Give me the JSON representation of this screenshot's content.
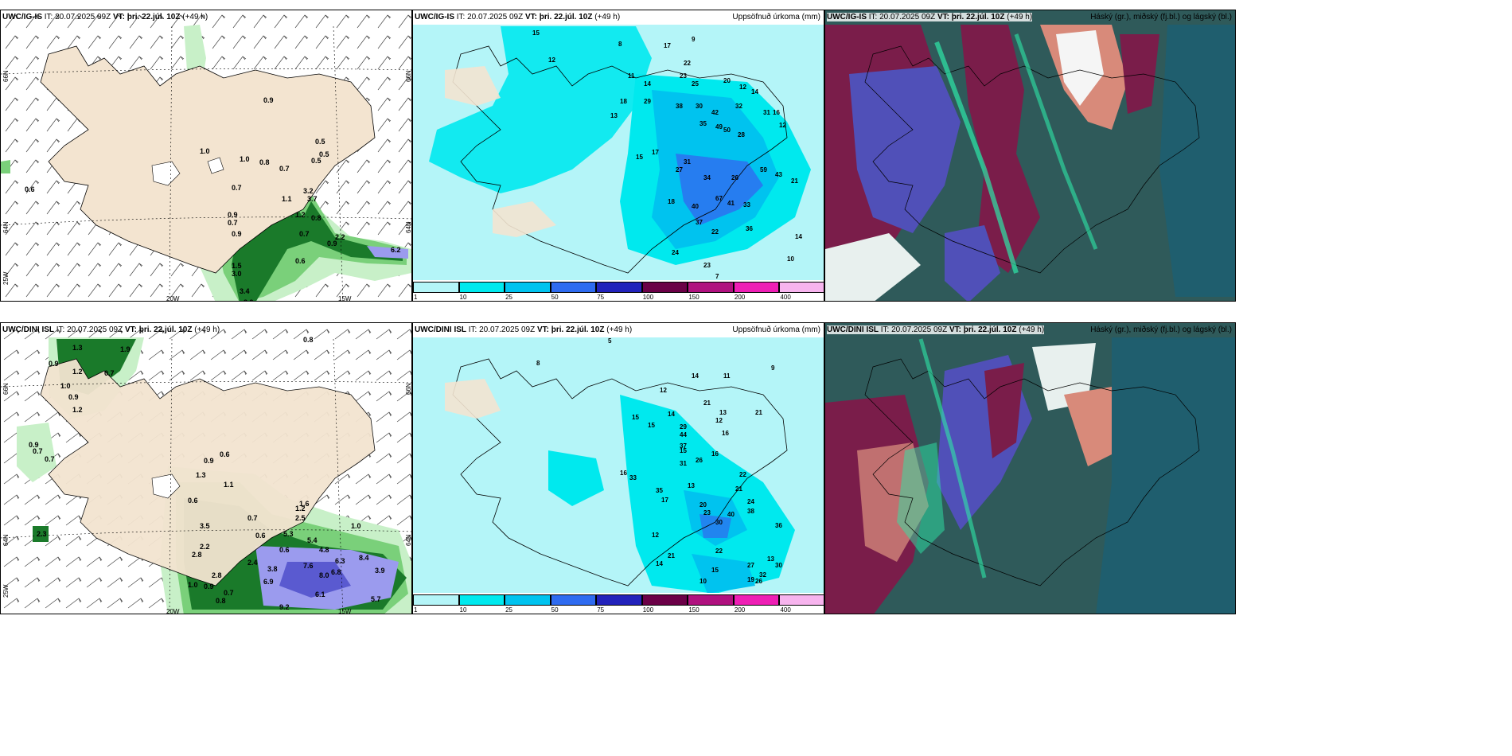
{
  "panels": {
    "top_left": {
      "model": "UWC/IG-IS",
      "it": "IT: 20.07.2025 09Z",
      "vt_label": "VT:",
      "vt": "þri. 22.júl. 10Z",
      "lead": "(+49 h)",
      "right": ""
    },
    "top_mid": {
      "model": "UWC/IG-IS",
      "it": "IT: 20.07.2025 09Z",
      "vt_label": "VT:",
      "vt": "þri. 22.júl. 10Z",
      "lead": "(+49 h)",
      "right": "Uppsöfnuð úrkoma (mm)"
    },
    "top_right": {
      "model": "UWC/IG-IS",
      "it": "IT: 20.07.2025 09Z",
      "vt_label": "VT:",
      "vt": "þri. 22.júl. 10Z",
      "lead": "(+49 h)",
      "right": "Háský (gr.), miðský (fj.bl.) og lágský (bl.)"
    },
    "bot_left": {
      "model": "UWC/DINI ISL",
      "it": "IT: 20.07.2025 09Z",
      "vt_label": "VT:",
      "vt": "þri. 22.júl. 10Z",
      "lead": "(+49 h)",
      "right": ""
    },
    "bot_mid": {
      "model": "UWC/DINI ISL",
      "it": "IT: 20.07.2025 09Z",
      "vt_label": "VT:",
      "vt": "þri. 22.júl. 10Z",
      "lead": "(+49 h)",
      "right": "Uppsöfnuð úrkoma (mm)"
    },
    "bot_right": {
      "model": "UWC/DINI ISL",
      "it": "IT: 20.07.2025 09Z",
      "vt_label": "VT:",
      "vt": "þri. 22.júl. 10Z",
      "lead": "(+49 h)",
      "right": "Háský (gr.), miðský (fj.bl.) og lágský (bl.)"
    }
  },
  "axis_labels": {
    "lon_20w": "20W",
    "lon_15w": "15W",
    "lat_66n": "66N",
    "lat_64n": "64N",
    "lat_25w": "25W"
  },
  "colorbar": {
    "ticks": [
      "1",
      "10",
      "25",
      "50",
      "75",
      "100",
      "150",
      "200",
      "400"
    ],
    "colors": [
      "#b4f5f8",
      "#00e9ee",
      "#00c3ef",
      "#2f6bf0",
      "#2222bb",
      "#6b0047",
      "#b0117f",
      "#ee1fb5",
      "#f7b4ee"
    ]
  },
  "top_left_values": [
    "0.9",
    "1.0",
    "1.0",
    "0.8",
    "0.7",
    "0.5",
    "0.7",
    "0.9",
    "0.5",
    "0.7",
    "0.9",
    "0.5",
    "1.1",
    "3.2",
    "3.7",
    "1.2",
    "0.8",
    "0.7",
    "2.2",
    "0.9",
    "0.6",
    "6.2",
    "1.5",
    "3.0",
    "3.4",
    "2.9",
    "0.6"
  ],
  "top_mid_values": [
    "15",
    "12",
    "8",
    "17",
    "9",
    "22",
    "23",
    "25",
    "20",
    "12",
    "14",
    "11",
    "14",
    "18",
    "29",
    "38",
    "30",
    "42",
    "32",
    "31",
    "35",
    "49",
    "50",
    "28",
    "16",
    "12",
    "13",
    "17",
    "15",
    "27",
    "31",
    "34",
    "26",
    "59",
    "43",
    "21",
    "18",
    "40",
    "67",
    "41",
    "37",
    "22",
    "33",
    "36",
    "24",
    "23",
    "14",
    "10",
    "7"
  ],
  "bot_left_values": [
    "1.3",
    "1.9",
    "0.8",
    "0.9",
    "1.2",
    "0.7",
    "1.0",
    "0.9",
    "1.2",
    "0.9",
    "0.7",
    "0.7",
    "0.6",
    "1.3",
    "1.1",
    "0.6",
    "3.5",
    "2.2",
    "2.8",
    "2.8",
    "0.7",
    "0.6",
    "5.3",
    "2.5",
    "1.6",
    "1.2",
    "1.0",
    "5.4",
    "4.8",
    "6.3",
    "8.4",
    "2.4",
    "3.8",
    "7.6",
    "8.0",
    "6.8",
    "3.9",
    "6.9",
    "6.1",
    "5.7",
    "9.2",
    "1.0",
    "0.9",
    "0.7",
    "0.8",
    "2.3",
    "0.9",
    "0.6"
  ],
  "bot_mid_values": [
    "5",
    "8",
    "14",
    "11",
    "9",
    "12",
    "15",
    "15",
    "14",
    "21",
    "13",
    "12",
    "16",
    "21",
    "29",
    "44",
    "37",
    "15",
    "16",
    "33",
    "35",
    "17",
    "31",
    "26",
    "16",
    "22",
    "21",
    "13",
    "30",
    "20",
    "23",
    "40",
    "38",
    "24",
    "36",
    "21",
    "14",
    "12",
    "22",
    "27",
    "30",
    "32",
    "26",
    "13",
    "10",
    "15",
    "19"
  ]
}
